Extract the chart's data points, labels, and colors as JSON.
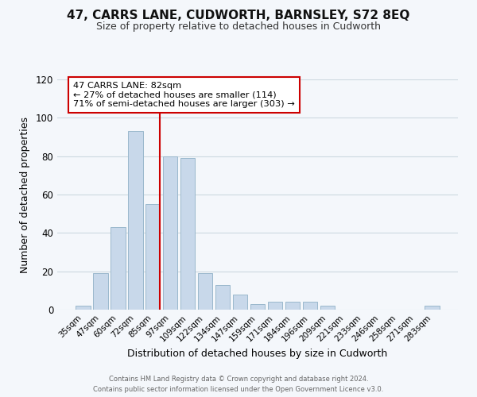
{
  "title": "47, CARRS LANE, CUDWORTH, BARNSLEY, S72 8EQ",
  "subtitle": "Size of property relative to detached houses in Cudworth",
  "xlabel": "Distribution of detached houses by size in Cudworth",
  "ylabel": "Number of detached properties",
  "bar_color": "#c8d8ea",
  "bar_edge_color": "#9ab8cc",
  "marker_line_color": "#cc0000",
  "categories": [
    "35sqm",
    "47sqm",
    "60sqm",
    "72sqm",
    "85sqm",
    "97sqm",
    "109sqm",
    "122sqm",
    "134sqm",
    "147sqm",
    "159sqm",
    "171sqm",
    "184sqm",
    "196sqm",
    "209sqm",
    "221sqm",
    "233sqm",
    "246sqm",
    "258sqm",
    "271sqm",
    "283sqm"
  ],
  "values": [
    2,
    19,
    43,
    93,
    55,
    80,
    79,
    19,
    13,
    8,
    3,
    4,
    4,
    4,
    2,
    0,
    0,
    0,
    0,
    0,
    2
  ],
  "marker_bar_index": 4,
  "ylim": [
    0,
    120
  ],
  "yticks": [
    0,
    20,
    40,
    60,
    80,
    100,
    120
  ],
  "annotation_title": "47 CARRS LANE: 82sqm",
  "annotation_line1": "← 27% of detached houses are smaller (114)",
  "annotation_line2": "71% of semi-detached houses are larger (303) →",
  "footer_line1": "Contains HM Land Registry data © Crown copyright and database right 2024.",
  "footer_line2": "Contains public sector information licensed under the Open Government Licence v3.0.",
  "background_color": "#f4f7fb",
  "grid_color": "#cdd8e0"
}
